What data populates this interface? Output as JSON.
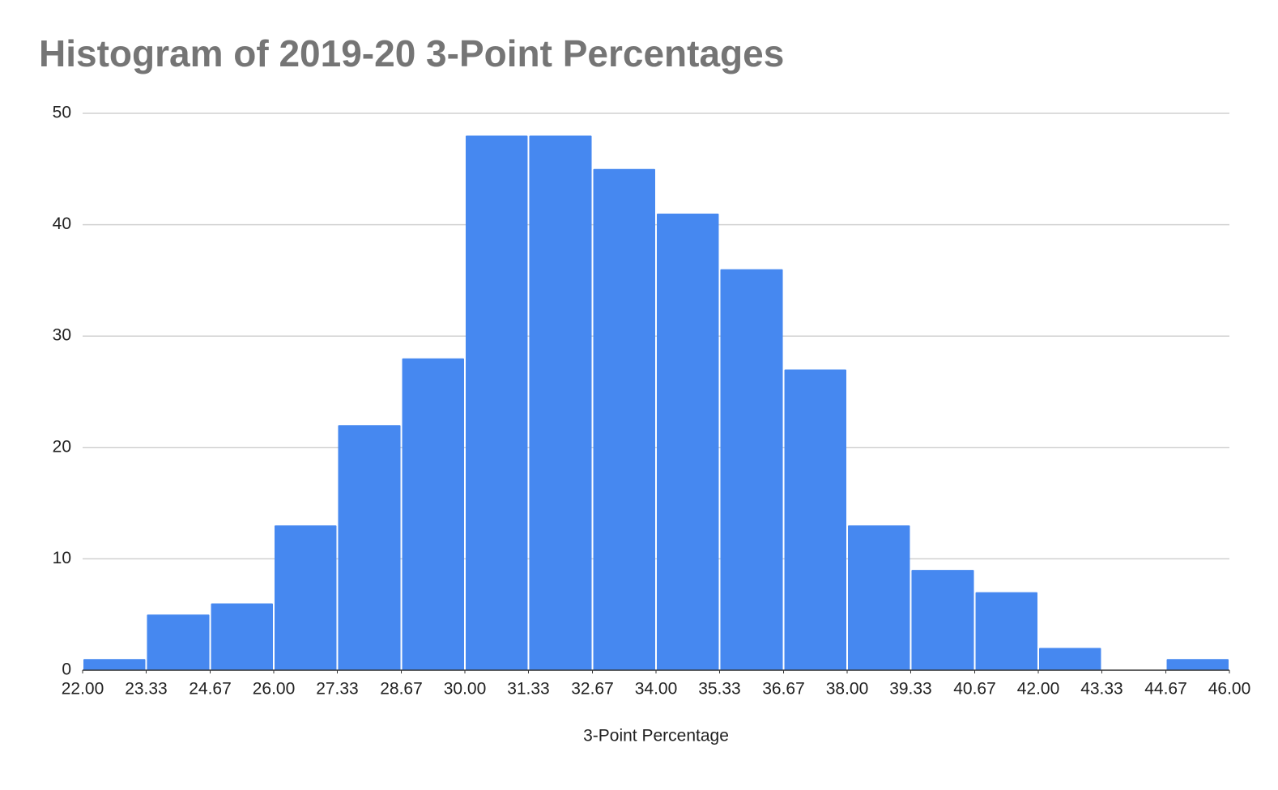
{
  "chart_data": {
    "type": "histogram",
    "title": "Histogram of 2019-20 3-Point Percentages",
    "x_label": "3-Point Percentage",
    "bins": [
      22,
      23.33,
      24.67,
      26,
      27.33,
      28.67,
      30,
      31.33,
      32.67,
      34,
      35.33,
      36.67,
      38,
      39.33,
      40.67,
      42,
      43.33,
      44.67,
      46
    ],
    "values": [
      1,
      5,
      6,
      13,
      22,
      28,
      48,
      48,
      45,
      41,
      36,
      27,
      13,
      9,
      7,
      2,
      0,
      1
    ],
    "color": "#4688f0",
    "xlim": [
      22,
      46
    ],
    "xticks": [
      {
        "value": 22,
        "label": "22.00"
      },
      {
        "value": 23.33,
        "label": "23.33"
      },
      {
        "value": 24.67,
        "label": "24.67"
      },
      {
        "value": 26,
        "label": "26.00"
      },
      {
        "value": 27.33,
        "label": "27.33"
      },
      {
        "value": 28.67,
        "label": "28.67"
      },
      {
        "value": 30,
        "label": "30.00"
      },
      {
        "value": 31.33,
        "label": "31.33"
      },
      {
        "value": 32.67,
        "label": "32.67"
      },
      {
        "value": 34,
        "label": "34.00"
      },
      {
        "value": 35.33,
        "label": "35.33"
      },
      {
        "value": 36.67,
        "label": "36.67"
      },
      {
        "value": 38,
        "label": "38.00"
      },
      {
        "value": 39.33,
        "label": "39.33"
      },
      {
        "value": 40.67,
        "label": "40.67"
      },
      {
        "value": 42,
        "label": "42.00"
      },
      {
        "value": 43.33,
        "label": "43.33"
      },
      {
        "value": 44.67,
        "label": "44.67"
      },
      {
        "value": 46,
        "label": "46.00"
      }
    ],
    "ylim": [
      0,
      50
    ],
    "yticks": [
      0,
      10,
      20,
      30,
      40,
      50
    ],
    "grid": true
  }
}
